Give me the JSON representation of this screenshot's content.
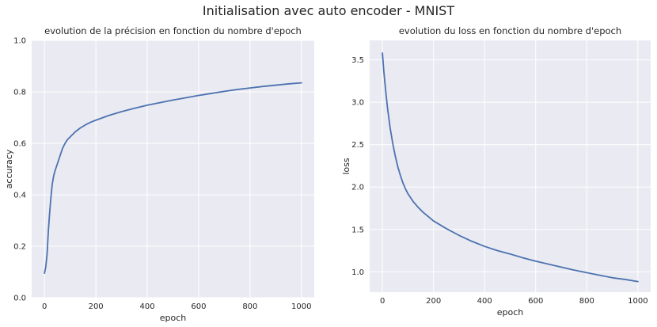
{
  "figure": {
    "suptitle": "Initialisation avec auto encoder - MNIST"
  },
  "style": {
    "background": "#eaeaf2",
    "grid": "#ffffff",
    "line": "#4c72b0"
  },
  "chart_data": [
    {
      "type": "line",
      "title": "evolution de la précision en fonction du nombre d'epoch",
      "xlabel": "epoch",
      "ylabel": "accuracy",
      "xlim": [
        -50,
        1050
      ],
      "ylim": [
        0,
        1.0
      ],
      "xticks": [
        0,
        200,
        400,
        600,
        800,
        1000
      ],
      "yticks": [
        0.0,
        0.2,
        0.4,
        0.6,
        0.8,
        1.0
      ],
      "grid": true,
      "series": [
        {
          "x": [
            0,
            5,
            10,
            15,
            20,
            25,
            30,
            35,
            40,
            50,
            60,
            70,
            80,
            90,
            100,
            120,
            140,
            160,
            180,
            200,
            250,
            300,
            350,
            400,
            450,
            500,
            550,
            600,
            650,
            700,
            750,
            800,
            850,
            900,
            950,
            1000
          ],
          "y": [
            0.095,
            0.12,
            0.17,
            0.26,
            0.33,
            0.39,
            0.44,
            0.47,
            0.49,
            0.52,
            0.55,
            0.58,
            0.6,
            0.615,
            0.625,
            0.645,
            0.66,
            0.672,
            0.682,
            0.69,
            0.708,
            0.723,
            0.736,
            0.748,
            0.758,
            0.768,
            0.777,
            0.786,
            0.794,
            0.802,
            0.809,
            0.815,
            0.821,
            0.826,
            0.831,
            0.835
          ]
        }
      ]
    },
    {
      "type": "line",
      "title": "evolution du loss en fonction du nombre d'epoch",
      "xlabel": "epoch",
      "ylabel": "loss",
      "xlim": [
        -50,
        1050
      ],
      "ylim": [
        0.76,
        3.73
      ],
      "xticks": [
        0,
        200,
        400,
        600,
        800,
        1000
      ],
      "yticks": [
        1.0,
        1.5,
        2.0,
        2.5,
        3.0,
        3.5
      ],
      "grid": true,
      "series": [
        {
          "x": [
            0,
            5,
            10,
            15,
            20,
            30,
            40,
            50,
            60,
            70,
            80,
            90,
            100,
            120,
            140,
            160,
            180,
            200,
            250,
            300,
            350,
            400,
            450,
            500,
            550,
            600,
            650,
            700,
            750,
            800,
            850,
            900,
            950,
            1000
          ],
          "y": [
            3.58,
            3.38,
            3.22,
            3.07,
            2.93,
            2.7,
            2.52,
            2.37,
            2.24,
            2.14,
            2.05,
            1.98,
            1.92,
            1.83,
            1.76,
            1.7,
            1.65,
            1.6,
            1.51,
            1.43,
            1.36,
            1.3,
            1.25,
            1.21,
            1.165,
            1.125,
            1.09,
            1.055,
            1.02,
            0.99,
            0.96,
            0.93,
            0.91,
            0.885
          ]
        }
      ]
    }
  ]
}
